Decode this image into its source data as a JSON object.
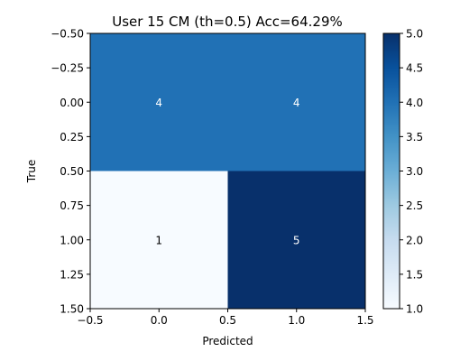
{
  "chart_data": {
    "type": "heatmap",
    "title": "User 15 CM (th=0.5) Acc=64.29%",
    "xlabel": "Predicted",
    "ylabel": "True",
    "xlim": [
      -0.5,
      1.5
    ],
    "ylim": [
      1.5,
      -0.5
    ],
    "x_ticks": [
      -0.5,
      0.0,
      0.5,
      1.0,
      1.5
    ],
    "x_tick_labels": [
      "−0.5",
      "0.0",
      "0.5",
      "1.0",
      "1.5"
    ],
    "y_ticks": [
      -0.5,
      -0.25,
      0.0,
      0.25,
      0.5,
      0.75,
      1.0,
      1.25,
      1.5
    ],
    "y_tick_labels": [
      "−0.50",
      "−0.25",
      "0.00",
      "0.25",
      "0.50",
      "0.75",
      "1.00",
      "1.25",
      "1.50"
    ],
    "matrix": [
      [
        4,
        4
      ],
      [
        1,
        5
      ]
    ],
    "cell_labels": [
      [
        "4",
        "4"
      ],
      [
        "1",
        "5"
      ]
    ],
    "colorbar": {
      "colormap": "Blues",
      "range": [
        1.0,
        5.0
      ],
      "ticks": [
        1.0,
        1.5,
        2.0,
        2.5,
        3.0,
        3.5,
        4.0,
        4.5,
        5.0
      ],
      "tick_labels": [
        "1.0",
        "1.5",
        "2.0",
        "2.5",
        "3.0",
        "3.5",
        "4.0",
        "4.5",
        "5.0"
      ]
    },
    "colors": {
      "low": "#f7fbff",
      "mid": "#2878b8",
      "high": "#08306b"
    },
    "grid": false
  }
}
